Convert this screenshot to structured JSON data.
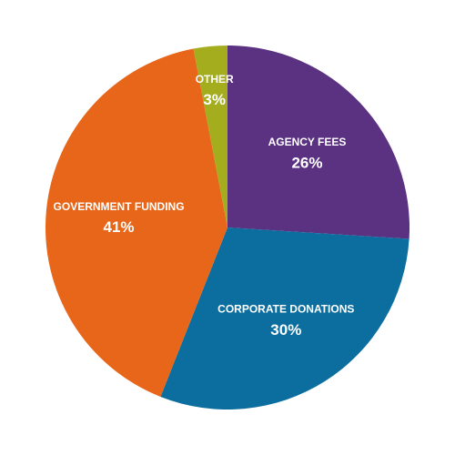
{
  "chart_data": {
    "type": "pie",
    "categories": [
      "AGENCY FEES",
      "CORPORATE DONATIONS",
      "GOVERNMENT FUNDING",
      "OTHER"
    ],
    "values": [
      26,
      30,
      41,
      3
    ],
    "value_labels": [
      "26%",
      "30%",
      "41%",
      "3%"
    ],
    "colors": [
      "#5b3181",
      "#0b6e9e",
      "#e86619",
      "#a3ad1d"
    ]
  }
}
